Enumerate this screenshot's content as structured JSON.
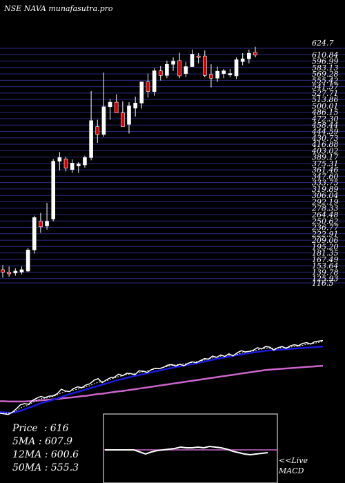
{
  "header": {
    "exchange": "NSE",
    "symbol": "NAVA",
    "site": "munafasutra.pro"
  },
  "stats": [
    {
      "label": "Price",
      "value": "616"
    },
    {
      "label": "5MA",
      "value": "607.9"
    },
    {
      "label": "12MA",
      "value": "600.6"
    },
    {
      "label": "50MA",
      "value": "555.3"
    }
  ],
  "macd_label": {
    "line1": "<<Live",
    "line2": "MACD"
  },
  "colors": {
    "background": "#000000",
    "grid": "#2c2c86",
    "up": "#ffffff",
    "down": "#cc0000",
    "ma_short": "#ffffff",
    "ma_mid": "#1b1bd8",
    "ma_long": "#cc66cc",
    "macd_box": "#ffffff"
  },
  "chart_data": {
    "type": "candlestick",
    "ylim": [
      116.5,
      624.7
    ],
    "price_levels": [
      "624.7",
      "610.84",
      "596.99",
      "583.13",
      "569.28",
      "555.42",
      "541.57",
      "527.71",
      "513.86",
      "500.01",
      "486.15",
      "472.30",
      "458.44",
      "444.59",
      "430.73",
      "416.88",
      "403.02",
      "389.17",
      "375.31",
      "361.46",
      "347.60",
      "333.75",
      "319.89",
      "306.04",
      "292.19",
      "278.33",
      "264.48",
      "250.62",
      "236.77",
      "222.91",
      "209.06",
      "195.20",
      "181.35",
      "167.49",
      "153.64",
      "139.78",
      "125.93",
      "116.5"
    ],
    "candles": [
      {
        "o": 145,
        "h": 155,
        "l": 128,
        "c": 140
      },
      {
        "o": 140,
        "h": 152,
        "l": 130,
        "c": 136
      },
      {
        "o": 138,
        "h": 148,
        "l": 132,
        "c": 142
      },
      {
        "o": 140,
        "h": 152,
        "l": 135,
        "c": 145
      },
      {
        "o": 142,
        "h": 192,
        "l": 140,
        "c": 188
      },
      {
        "o": 188,
        "h": 262,
        "l": 180,
        "c": 258
      },
      {
        "o": 250,
        "h": 268,
        "l": 225,
        "c": 238
      },
      {
        "o": 240,
        "h": 290,
        "l": 232,
        "c": 250
      },
      {
        "o": 255,
        "h": 385,
        "l": 250,
        "c": 380
      },
      {
        "o": 380,
        "h": 400,
        "l": 360,
        "c": 388
      },
      {
        "o": 385,
        "h": 390,
        "l": 358,
        "c": 365
      },
      {
        "o": 362,
        "h": 384,
        "l": 355,
        "c": 376
      },
      {
        "o": 370,
        "h": 378,
        "l": 355,
        "c": 374
      },
      {
        "o": 372,
        "h": 392,
        "l": 366,
        "c": 388
      },
      {
        "o": 388,
        "h": 532,
        "l": 382,
        "c": 468
      },
      {
        "o": 455,
        "h": 470,
        "l": 420,
        "c": 438
      },
      {
        "o": 438,
        "h": 572,
        "l": 433,
        "c": 498
      },
      {
        "o": 498,
        "h": 515,
        "l": 470,
        "c": 508
      },
      {
        "o": 508,
        "h": 525,
        "l": 488,
        "c": 485
      },
      {
        "o": 485,
        "h": 510,
        "l": 455,
        "c": 455
      },
      {
        "o": 460,
        "h": 508,
        "l": 440,
        "c": 500
      },
      {
        "o": 495,
        "h": 520,
        "l": 477,
        "c": 506
      },
      {
        "o": 506,
        "h": 552,
        "l": 494,
        "c": 552
      },
      {
        "o": 552,
        "h": 570,
        "l": 518,
        "c": 531
      },
      {
        "o": 531,
        "h": 582,
        "l": 522,
        "c": 576
      },
      {
        "o": 576,
        "h": 586,
        "l": 555,
        "c": 566
      },
      {
        "o": 566,
        "h": 598,
        "l": 560,
        "c": 590
      },
      {
        "o": 590,
        "h": 605,
        "l": 576,
        "c": 597
      },
      {
        "o": 598,
        "h": 615,
        "l": 560,
        "c": 565
      },
      {
        "o": 570,
        "h": 595,
        "l": 562,
        "c": 585
      },
      {
        "o": 585,
        "h": 622,
        "l": 585,
        "c": 612
      },
      {
        "o": 608,
        "h": 614,
        "l": 592,
        "c": 605
      },
      {
        "o": 608,
        "h": 620,
        "l": 562,
        "c": 566
      },
      {
        "o": 568,
        "h": 590,
        "l": 540,
        "c": 560
      },
      {
        "o": 560,
        "h": 585,
        "l": 552,
        "c": 575
      },
      {
        "o": 570,
        "h": 580,
        "l": 560,
        "c": 576
      },
      {
        "o": 568,
        "h": 580,
        "l": 562,
        "c": 570
      },
      {
        "o": 565,
        "h": 605,
        "l": 558,
        "c": 600
      },
      {
        "o": 596,
        "h": 614,
        "l": 588,
        "c": 602
      },
      {
        "o": 602,
        "h": 622,
        "l": 592,
        "c": 614
      },
      {
        "o": 616,
        "h": 628,
        "l": 605,
        "c": 610
      }
    ],
    "lower_panel": {
      "price_line": [
        30,
        28,
        26,
        33,
        45,
        58,
        62,
        60,
        73,
        80,
        86,
        82,
        87,
        88,
        95,
        110,
        104,
        102,
        112,
        118,
        115,
        124,
        128,
        140,
        145,
        132,
        141,
        148,
        150,
        160,
        155,
        163,
        162,
        158,
        171,
        170,
        166,
        175,
        180,
        178,
        183,
        190,
        192,
        187,
        193,
        188,
        196,
        201,
        198,
        205,
        212,
        210,
        220,
        216,
        224,
        219,
        228,
        221,
        231,
        238,
        234,
        236,
        240,
        248,
        244,
        252,
        250,
        240,
        248,
        252,
        246,
        254,
        258,
        255,
        262,
        265,
        260,
        268,
        270,
        272
      ],
      "ma_short": [
        30,
        30,
        30,
        32,
        38,
        47,
        53,
        58,
        66,
        72,
        78,
        80,
        82,
        86,
        91,
        98,
        102,
        104,
        107,
        110,
        114,
        118,
        122,
        128,
        133,
        135,
        138,
        143,
        147,
        152,
        155,
        159,
        161,
        163,
        166,
        168,
        171,
        174,
        178,
        180,
        183,
        186,
        189,
        191,
        193,
        194,
        196,
        199,
        201,
        203,
        207,
        211,
        214,
        217,
        220,
        221,
        223,
        224,
        226,
        230,
        233,
        235,
        237,
        241,
        244,
        246,
        246,
        246,
        247,
        248,
        248,
        250,
        252,
        253,
        256,
        259,
        261,
        263,
        266,
        268
      ],
      "ma_mid": [
        34,
        33,
        32,
        32,
        34,
        38,
        43,
        48,
        53,
        58,
        63,
        67,
        71,
        75,
        79,
        84,
        89,
        93,
        97,
        101,
        105,
        109,
        113,
        117,
        121,
        125,
        129,
        133,
        137,
        141,
        144,
        148,
        151,
        154,
        157,
        160,
        163,
        166,
        169,
        172,
        175,
        178,
        181,
        184,
        186,
        189,
        191,
        193,
        196,
        199,
        202,
        205,
        208,
        211,
        213,
        216,
        218,
        221,
        223,
        225,
        228,
        230,
        232,
        234,
        236,
        238,
        239,
        240,
        241,
        242,
        243,
        244,
        245,
        246,
        247,
        248,
        249,
        250,
        251,
        252
      ],
      "ma_long": [
        70,
        70,
        69,
        69,
        69,
        69,
        69,
        70,
        71,
        72,
        73,
        74,
        75,
        76,
        77,
        79,
        81,
        82,
        83,
        85,
        87,
        88,
        90,
        92,
        94,
        95,
        97,
        99,
        101,
        103,
        104,
        106,
        108,
        110,
        112,
        114,
        116,
        118,
        120,
        122,
        124,
        126,
        128,
        130,
        132,
        134,
        136,
        138,
        140,
        142,
        144,
        146,
        148,
        150,
        152,
        154,
        156,
        158,
        160,
        162,
        164,
        166,
        168,
        170,
        172,
        174,
        175,
        176,
        177,
        178,
        179,
        180,
        181,
        182,
        183,
        184,
        185,
        186,
        187,
        188
      ],
      "macd": [
        0,
        0,
        0,
        0,
        0,
        0,
        -3,
        -6,
        -3,
        -1,
        0,
        1,
        2,
        4,
        3,
        3,
        4,
        3,
        5,
        4,
        3,
        1,
        -2,
        -4,
        -6,
        -7,
        -6,
        -5,
        -4
      ]
    }
  }
}
